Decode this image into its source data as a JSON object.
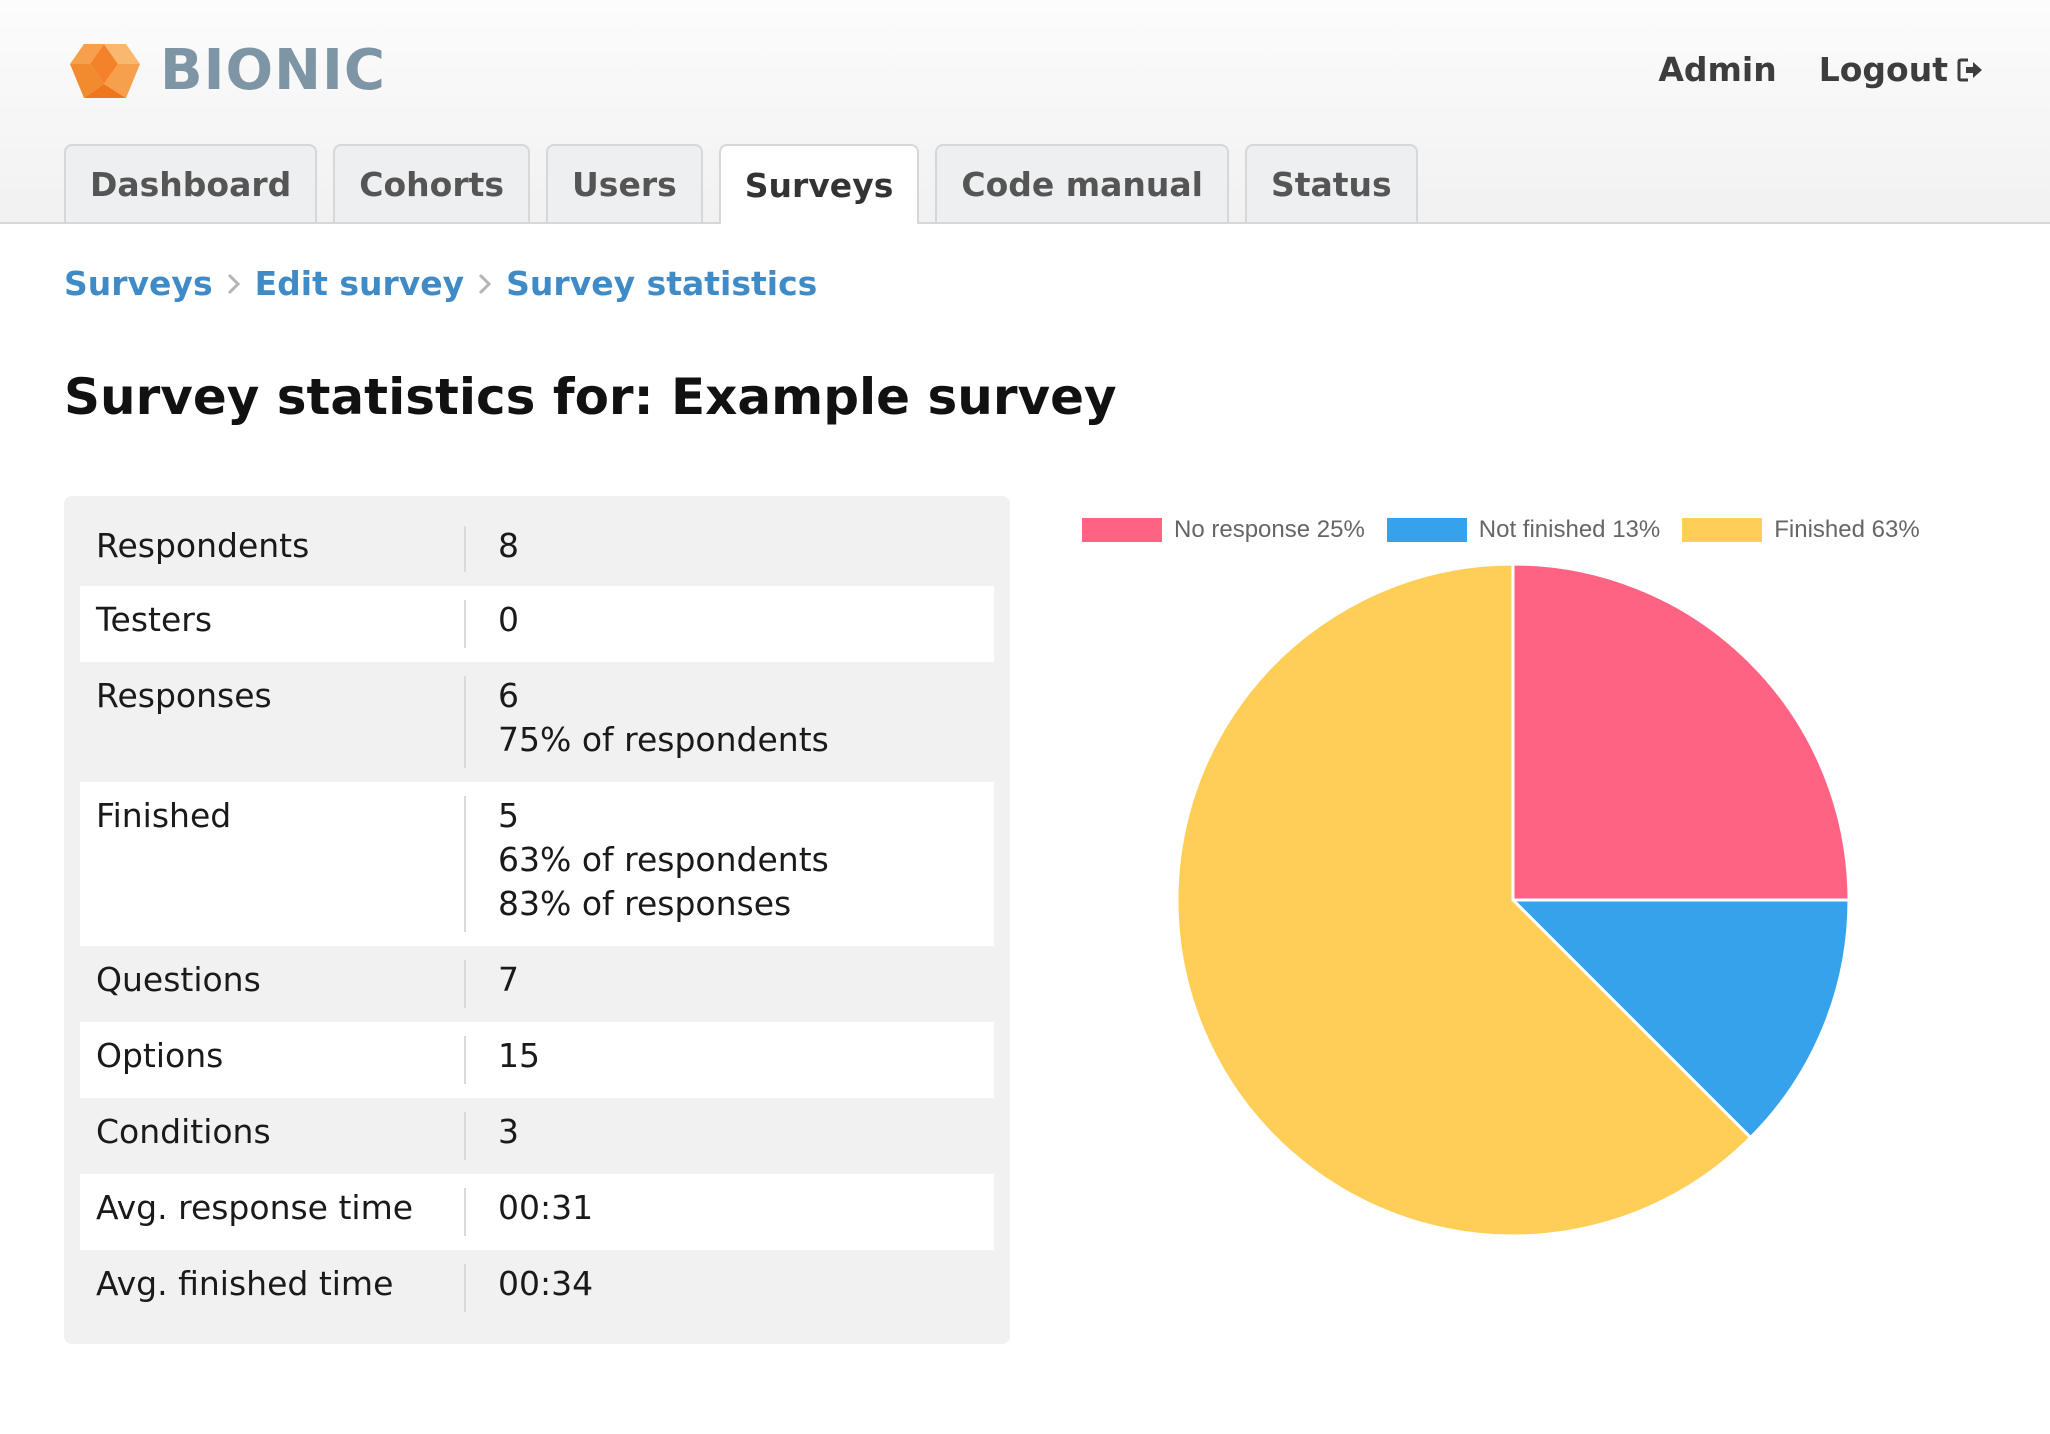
{
  "brand": {
    "name": "BIONIC"
  },
  "topnav": {
    "admin": "Admin",
    "logout": "Logout"
  },
  "tabs": [
    {
      "label": "Dashboard"
    },
    {
      "label": "Cohorts"
    },
    {
      "label": "Users"
    },
    {
      "label": "Surveys",
      "active": true
    },
    {
      "label": "Code manual"
    },
    {
      "label": "Status"
    }
  ],
  "breadcrumb": [
    "Surveys",
    "Edit survey",
    "Survey statistics"
  ],
  "page_title": "Survey statistics for: Example survey",
  "stats": [
    {
      "label": "Respondents",
      "lines": [
        "8"
      ]
    },
    {
      "label": "Testers",
      "lines": [
        "0"
      ]
    },
    {
      "label": "Responses",
      "lines": [
        "6",
        "75% of respondents"
      ]
    },
    {
      "label": "Finished",
      "lines": [
        "5",
        "63% of respondents",
        "83% of responses"
      ]
    },
    {
      "label": "Questions",
      "lines": [
        "7"
      ]
    },
    {
      "label": "Options",
      "lines": [
        "15"
      ]
    },
    {
      "label": "Conditions",
      "lines": [
        "3"
      ]
    },
    {
      "label": "Avg. response time",
      "lines": [
        "00:31"
      ]
    },
    {
      "label": "Avg. finished time",
      "lines": [
        "00:34"
      ]
    }
  ],
  "colors": {
    "no_response": "#ff6384",
    "not_finished": "#36a2eb",
    "finished": "#ffce56",
    "link": "#3f8bc8",
    "brand": "#7e95a5"
  },
  "chart_data": {
    "type": "pie",
    "title": "",
    "legend_placement": "top",
    "slices": [
      {
        "label": "No response 25%",
        "value": 2,
        "color": "#ff6384"
      },
      {
        "label": "Not finished 13%",
        "value": 1,
        "color": "#36a2eb"
      },
      {
        "label": "Finished 63%",
        "value": 5,
        "color": "#ffce56"
      }
    ]
  }
}
